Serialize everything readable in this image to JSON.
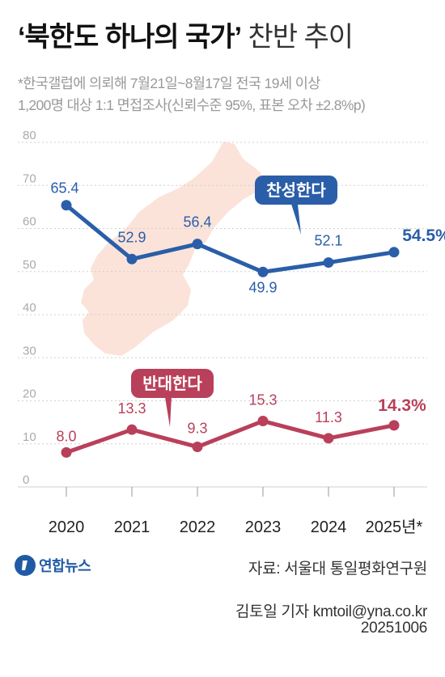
{
  "header": {
    "title_bold": "‘북한도 하나의 국가’",
    "title_light": "찬반 추이",
    "subtitle_line1": "*한국갤럽에 의뢰해 7월21일~8월17일 전국 19세 이상",
    "subtitle_line2": "1,200명 대상 1:1 면접조사(신뢰수준 95%, 표본 오차 ±2.8%p)"
  },
  "chart_data": {
    "type": "line",
    "categories": [
      "2020",
      "2021",
      "2022",
      "2023",
      "2024",
      "2025년*"
    ],
    "ylim": [
      0,
      80
    ],
    "yticks": [
      0,
      10,
      20,
      30,
      40,
      50,
      60,
      70,
      80
    ],
    "grid": true,
    "series": [
      {
        "name": "찬성한다",
        "color": "#2a5ea8",
        "values": [
          65.4,
          52.9,
          56.4,
          49.9,
          52.1,
          54.5
        ],
        "labels": [
          "65.4",
          "52.9",
          "56.4",
          "49.9",
          "52.1",
          "54.5%"
        ]
      },
      {
        "name": "반대한다",
        "color": "#b9405a",
        "values": [
          8.0,
          13.3,
          9.3,
          15.3,
          11.3,
          14.3
        ],
        "labels": [
          "8.0",
          "13.3",
          "9.3",
          "15.3",
          "11.3",
          "14.3%"
        ]
      }
    ]
  },
  "colors": {
    "map": "#fbe3d9",
    "grid": "#cfcfcf",
    "tick": "#aaaaaa"
  },
  "footer": {
    "logo_text": "연합뉴스",
    "source": "자료: 서울대 통일평화연구원",
    "reporter": "김토일 기자 kmtoil@yna.co.kr",
    "date": "20251006"
  }
}
